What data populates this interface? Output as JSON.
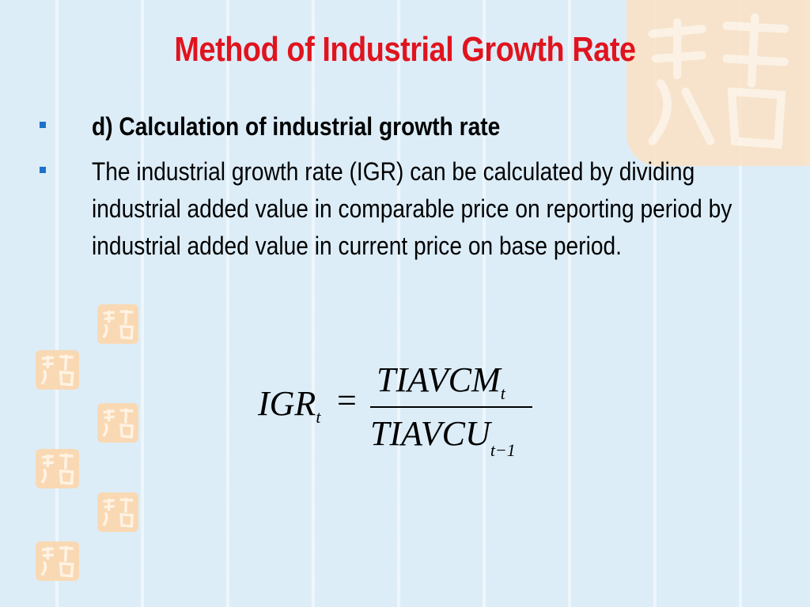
{
  "slide": {
    "title": "Method  of Industrial Growth Rate",
    "bullets": [
      "d) Calculation of industrial growth rate",
      "The industrial growth rate (IGR) can be calculated by dividing industrial added value in comparable price on reporting period by industrial added value in current price on base period."
    ],
    "formula": {
      "lhs": "IGR",
      "lhs_sub": "t",
      "equals": "=",
      "numerator": "TIAVCM",
      "numerator_sub": "t",
      "denominator": "TIAVCU",
      "denominator_sub": "t−1"
    }
  },
  "theme": {
    "background": "#dcedf8",
    "title_color": "#e0141e",
    "bullet_color": "#1f72c9",
    "seal_color": "#f9d9b4"
  }
}
